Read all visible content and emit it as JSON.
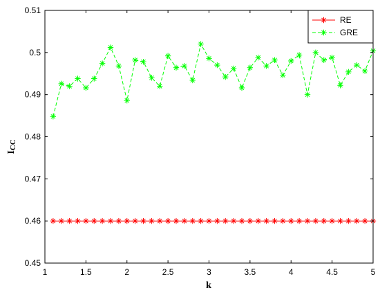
{
  "chart_data": {
    "type": "line",
    "xlabel": "k",
    "ylabel_main": "I",
    "ylabel_sub": "CC",
    "xlim": [
      1,
      5
    ],
    "ylim": [
      0.45,
      0.51
    ],
    "xticks": [
      "1",
      "1.5",
      "2",
      "2.5",
      "3",
      "3.5",
      "4",
      "4.5",
      "5"
    ],
    "yticks": [
      "0.45",
      "0.46",
      "0.47",
      "0.48",
      "0.49",
      "0.5",
      "0.51"
    ],
    "legend_position": "top-right",
    "grid": false,
    "x": [
      1.1,
      1.2,
      1.3,
      1.4,
      1.5,
      1.6,
      1.7,
      1.8,
      1.9,
      2.0,
      2.1,
      2.2,
      2.3,
      2.4,
      2.5,
      2.6,
      2.7,
      2.8,
      2.9,
      3.0,
      3.1,
      3.2,
      3.3,
      3.4,
      3.5,
      3.6,
      3.7,
      3.8,
      3.9,
      4.0,
      4.1,
      4.2,
      4.3,
      4.4,
      4.5,
      4.6,
      4.7,
      4.8,
      4.9,
      5.0
    ],
    "series": [
      {
        "name": "RE",
        "color": "#ff0000",
        "linestyle": "solid",
        "marker": "asterisk",
        "values": [
          0.46,
          0.46,
          0.46,
          0.46,
          0.46,
          0.46,
          0.46,
          0.46,
          0.46,
          0.46,
          0.46,
          0.46,
          0.46,
          0.46,
          0.46,
          0.46,
          0.46,
          0.46,
          0.46,
          0.46,
          0.46,
          0.46,
          0.46,
          0.46,
          0.46,
          0.46,
          0.46,
          0.46,
          0.46,
          0.46,
          0.46,
          0.46,
          0.46,
          0.46,
          0.46,
          0.46,
          0.46,
          0.46,
          0.46,
          0.46
        ]
      },
      {
        "name": "GRE",
        "color": "#00ff00",
        "linestyle": "dashed",
        "marker": "asterisk",
        "values": [
          0.4848,
          0.4926,
          0.492,
          0.4938,
          0.4916,
          0.4938,
          0.4974,
          0.5012,
          0.4968,
          0.4886,
          0.4982,
          0.4978,
          0.494,
          0.492,
          0.4992,
          0.4964,
          0.4968,
          0.4934,
          0.502,
          0.4986,
          0.497,
          0.4942,
          0.4962,
          0.4916,
          0.4964,
          0.4988,
          0.4968,
          0.4982,
          0.4946,
          0.498,
          0.4994,
          0.49,
          0.5,
          0.4982,
          0.4988,
          0.4922,
          0.4954,
          0.497,
          0.4956,
          0.5004
        ]
      }
    ]
  }
}
